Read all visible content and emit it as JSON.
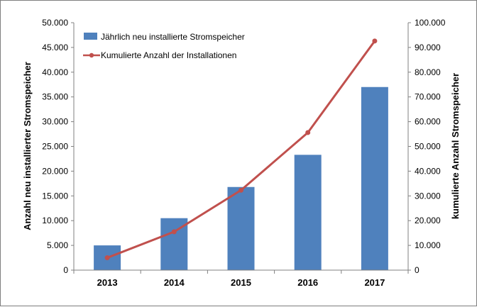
{
  "chart_data": {
    "type": "bar",
    "categories": [
      "2013",
      "2014",
      "2015",
      "2016",
      "2017"
    ],
    "series": [
      {
        "name": "Jährlich neu installierte Stromspeicher",
        "type": "bar",
        "axis": "left",
        "color": "#4f81bd",
        "values": [
          5000,
          10500,
          16800,
          23300,
          37000
        ]
      },
      {
        "name": "Kumulierte Anzahl der Installationen",
        "type": "line",
        "axis": "right",
        "color": "#c0504d",
        "values": [
          5000,
          15500,
          32300,
          55600,
          92600
        ]
      }
    ],
    "ylabel_left": "Anzahl neu installierter Stromspeicher",
    "ylabel_right": "kumulierte Anzahl Stromspeicher",
    "ylim_left": [
      0,
      50000
    ],
    "ylim_right": [
      0,
      100000
    ],
    "yticks_left": [
      "0",
      "5.000",
      "10.000",
      "15.000",
      "20.000",
      "25.000",
      "30.000",
      "35.000",
      "40.000",
      "45.000",
      "50.000"
    ],
    "yticks_right": [
      "0",
      "10.000",
      "20.000",
      "30.000",
      "40.000",
      "50.000",
      "60.000",
      "70.000",
      "80.000",
      "90.000",
      "100.000"
    ],
    "grid": false,
    "legend_position": "top-left"
  }
}
